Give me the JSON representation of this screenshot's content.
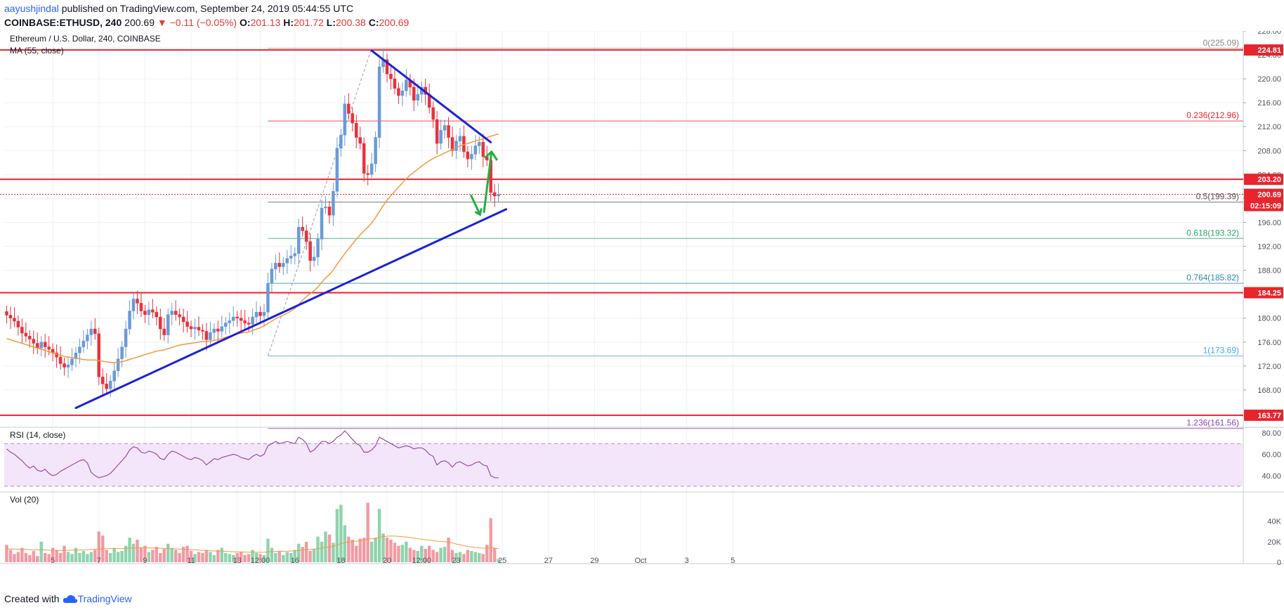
{
  "header": {
    "author": "aayushjindal",
    "published": "published on TradingView.com, September 24, 2019 05:44:55 UTC",
    "symbol": "COINBASE:ETHUSD, 240",
    "last": "200.69",
    "change": "−0.11 (−0.05%)",
    "open_label": "O:",
    "open": "201.13",
    "high_label": "H:",
    "high": "201.72",
    "low_label": "L:",
    "low": "200.38",
    "close_label": "C:",
    "close": "200.69"
  },
  "footer": {
    "created_with": "Created with",
    "brand": "TradingView"
  },
  "colors": {
    "up": "#6a9ad8",
    "down": "#e8323c",
    "ma": "#f59a3c",
    "trend": "#1c22d6",
    "arrow": "#21b040",
    "level": "#e8242c",
    "rsi_line": "#9c4aa8",
    "vol_up": "#8fd3ac",
    "vol_down": "#f39aa4"
  },
  "chart_data": [
    {
      "type": "candlestick",
      "title": "Ethereum / U.S. Dollar, 240, COINBASE",
      "indicator_label": "MA (55, close)",
      "ylim": [
        162,
        228
      ],
      "y_ticks": [
        168,
        172,
        176,
        180,
        184,
        188,
        192,
        196,
        200,
        204,
        208,
        212,
        216,
        220,
        224,
        228
      ],
      "x_ticks": [
        {
          "label": "5",
          "i": 12
        },
        {
          "label": "7",
          "i": 24
        },
        {
          "label": "9",
          "i": 36
        },
        {
          "label": "11",
          "i": 48
        },
        {
          "label": "13",
          "i": 60
        },
        {
          "label": "12:00",
          "i": 66
        },
        {
          "label": "16",
          "i": 75
        },
        {
          "label": "18",
          "i": 87
        },
        {
          "label": "20",
          "i": 99
        },
        {
          "label": "12:00",
          "i": 108
        },
        {
          "label": "23",
          "i": 117
        },
        {
          "label": "25",
          "i": 129
        },
        {
          "label": "27",
          "i": 141
        },
        {
          "label": "29",
          "i": 153
        },
        {
          "label": "Oct",
          "i": 165
        },
        {
          "label": "3",
          "i": 177
        },
        {
          "label": "5",
          "i": 189
        }
      ],
      "close": [
        180.5,
        180.0,
        179.5,
        178.5,
        177.5,
        177.0,
        176.5,
        175.8,
        175.0,
        176.0,
        175.2,
        174.8,
        174.2,
        173.5,
        172.4,
        171.8,
        172.2,
        173.2,
        174.2,
        175.2,
        176.2,
        177.2,
        178.2,
        177.4,
        170.2,
        169.0,
        168.2,
        169.5,
        171.2,
        173.2,
        175.2,
        178.2,
        181.2,
        183.2,
        182.5,
        181.2,
        180.6,
        181.4,
        181.0,
        180.2,
        178.2,
        177.2,
        180.6,
        181.2,
        180.6,
        180.2,
        179.4,
        178.6,
        178.2,
        178.5,
        178.0,
        177.8,
        176.4,
        177.6,
        178.2,
        177.8,
        178.6,
        179.2,
        179.6,
        180.2,
        180.0,
        179.6,
        179.2,
        179.0,
        180.2,
        181.0,
        180.4,
        181.0,
        185.8,
        188.2,
        189.2,
        188.6,
        189.2,
        190.0,
        190.4,
        190.8,
        195.2,
        194.6,
        192.8,
        189.6,
        190.2,
        193.2,
        198.4,
        198.6,
        197.2,
        201.2,
        208.4,
        210.6,
        215.8,
        214.2,
        212.6,
        210.2,
        209.2,
        204.2,
        204.0,
        205.8,
        210.2,
        222.0,
        223.2,
        220.8,
        220.0,
        218.4,
        217.2,
        218.0,
        219.8,
        218.6,
        216.4,
        217.4,
        218.6,
        217.4,
        215.2,
        213.2,
        209.2,
        211.4,
        212.2,
        210.2,
        208.0,
        209.6,
        210.4,
        207.8,
        206.6,
        207.4,
        208.8,
        209.4,
        207.0,
        206.4,
        201.0,
        200.4,
        200.7
      ],
      "ma55_start_index": 0,
      "ma55": [
        176.6,
        176.4,
        176.2,
        176.0,
        175.8,
        175.6,
        175.4,
        175.2,
        175.0,
        174.8,
        174.6,
        174.4,
        174.2,
        174.0,
        173.8,
        173.6,
        173.5,
        173.4,
        173.3,
        173.2,
        173.1,
        173.0,
        173.0,
        173.0,
        172.9,
        172.8,
        172.7,
        172.6,
        172.6,
        172.6,
        172.7,
        172.9,
        173.1,
        173.3,
        173.5,
        173.7,
        173.9,
        174.1,
        174.3,
        174.5,
        174.6,
        174.7,
        174.9,
        175.1,
        175.3,
        175.5,
        175.6,
        175.7,
        175.8,
        175.9,
        176.0,
        176.1,
        176.1,
        176.2,
        176.3,
        176.4,
        176.6,
        176.8,
        177.0,
        177.2,
        177.4,
        177.5,
        177.6,
        177.7,
        177.9,
        178.2,
        178.4,
        178.7,
        179.1,
        179.5,
        179.9,
        180.2,
        180.5,
        180.8,
        181.2,
        181.6,
        182.3,
        183.0,
        183.6,
        184.1,
        184.6,
        185.2,
        186.0,
        186.7,
        187.3,
        188.0,
        189.0,
        189.9,
        190.8,
        191.6,
        192.4,
        193.2,
        193.9,
        194.6,
        195.2,
        195.9,
        196.8,
        197.8,
        198.8,
        199.7,
        200.5,
        201.2,
        201.9,
        202.6,
        203.3,
        203.9,
        204.4,
        204.9,
        205.4,
        205.9,
        206.3,
        206.7,
        207.0,
        207.3,
        207.6,
        207.9,
        208.2,
        208.5,
        208.8,
        209.0,
        209.2,
        209.4,
        209.6,
        209.8,
        210.0,
        210.2,
        210.4,
        210.6,
        210.8
      ],
      "horizontal_levels": [
        224.81,
        203.2,
        184.25,
        163.77
      ],
      "price_badges": [
        "224.81",
        "203.20",
        "200.69",
        "02:15:09",
        "184.25",
        "163.77"
      ],
      "fib_levels": [
        {
          "label": "0(225.09)",
          "value": 225.09,
          "color": "#888888"
        },
        {
          "label": "0.236(212.96)",
          "value": 212.96,
          "color": "#e8242c"
        },
        {
          "label": "0.5(199.39)",
          "value": 199.39,
          "color": "#555555"
        },
        {
          "label": "0.618(193.32)",
          "value": 193.32,
          "color": "#24a86a"
        },
        {
          "label": "0.764(185.82)",
          "value": 185.82,
          "color": "#2a8ab4"
        },
        {
          "label": "1(173.69)",
          "value": 173.69,
          "color": "#42a5f5"
        },
        {
          "label": "1.236(161.56)",
          "value": 161.56,
          "color": "#8e44ad"
        }
      ],
      "trendlines": [
        {
          "from": [
            18,
            165.0
          ],
          "to": [
            130,
            198.2
          ]
        },
        {
          "from": [
            95,
            224.7
          ],
          "to": [
            126,
            209.4
          ]
        }
      ]
    },
    {
      "type": "line",
      "title": "RSI (14, close)",
      "ylim": [
        26,
        84
      ],
      "y_ticks": [
        40,
        60,
        80
      ],
      "band": [
        30,
        70
      ],
      "values": [
        65,
        62,
        60,
        57,
        54,
        50,
        47,
        49,
        45,
        44,
        46,
        42,
        40,
        41,
        44,
        46,
        48,
        50,
        52,
        54,
        55,
        52,
        43,
        40,
        38,
        39,
        40,
        42,
        46,
        50,
        54,
        58,
        64,
        67,
        66,
        62,
        61,
        63,
        62,
        60,
        56,
        55,
        60,
        63,
        62,
        60,
        58,
        56,
        55,
        57,
        56,
        54,
        50,
        53,
        56,
        55,
        57,
        58,
        59,
        60,
        59,
        57,
        56,
        55,
        58,
        60,
        58,
        60,
        68,
        70,
        72,
        70,
        71,
        72,
        71,
        70,
        76,
        74,
        70,
        62,
        64,
        68,
        72,
        72,
        70,
        72,
        76,
        78,
        82,
        78,
        74,
        70,
        68,
        62,
        62,
        64,
        68,
        76,
        74,
        72,
        70,
        68,
        66,
        67,
        68,
        67,
        65,
        66,
        66,
        64,
        60,
        58,
        50,
        53,
        54,
        52,
        48,
        52,
        53,
        51,
        49,
        50,
        52,
        53,
        50,
        49,
        40,
        38,
        38
      ]
    },
    {
      "type": "bar",
      "title": "Vol (20)",
      "ylim": [
        0,
        59000
      ],
      "y_ticks": [
        {
          "v": 0,
          "label": "0"
        },
        {
          "v": 20000,
          "label": "20K"
        },
        {
          "v": 40000,
          "label": "40K"
        }
      ],
      "values": [
        17000,
        12000,
        8000,
        10000,
        14000,
        9000,
        7000,
        11000,
        6000,
        20000,
        9000,
        8000,
        14000,
        12000,
        9000,
        16000,
        10000,
        8000,
        14000,
        9000,
        11000,
        8000,
        10000,
        12000,
        30000,
        26000,
        12000,
        9000,
        14000,
        10000,
        11000,
        16000,
        24000,
        18000,
        22000,
        14000,
        16000,
        10000,
        12000,
        15000,
        9000,
        13000,
        18000,
        14000,
        12000,
        9000,
        15000,
        16000,
        11000,
        8000,
        10000,
        9000,
        12000,
        10000,
        7000,
        12000,
        14000,
        9000,
        8000,
        7000,
        9000,
        10000,
        7000,
        8000,
        12000,
        9000,
        8000,
        7000,
        23000,
        14000,
        9000,
        11000,
        7000,
        10000,
        9000,
        12000,
        18000,
        15000,
        20000,
        11000,
        13000,
        25000,
        20000,
        30000,
        27000,
        19000,
        52000,
        56000,
        36000,
        25000,
        22000,
        16000,
        23000,
        24000,
        58000,
        20000,
        24000,
        52000,
        28000,
        24000,
        22000,
        19000,
        16000,
        17000,
        20000,
        14000,
        12000,
        11000,
        16000,
        13000,
        16000,
        12000,
        10000,
        14000,
        15000,
        24000,
        12000,
        9000,
        10000,
        8000,
        12000,
        11000,
        10000,
        9000,
        8000,
        17000,
        43000,
        14000,
        3000
      ],
      "ma_values": [
        13000,
        13000,
        12800,
        12700,
        12600,
        12400,
        12200,
        12100,
        12000,
        12100,
        12000,
        11800,
        11700,
        11600,
        11500,
        11500,
        11600,
        11700,
        11800,
        11900,
        12000,
        12200,
        12400,
        12600,
        12900,
        13100,
        13200,
        13300,
        13300,
        13300,
        13300,
        13500,
        13700,
        13900,
        14000,
        14100,
        14100,
        14000,
        13900,
        13800,
        13600,
        13500,
        13300,
        13200,
        13000,
        12800,
        12600,
        12400,
        12200,
        12000,
        11800,
        11600,
        11400,
        11200,
        11000,
        10900,
        10800,
        10600,
        10400,
        10200,
        10100,
        10000,
        9900,
        9800,
        9800,
        9700,
        9700,
        9800,
        10100,
        10300,
        10400,
        10600,
        10700,
        10800,
        11000,
        11200,
        11500,
        11800,
        12200,
        12500,
        12800,
        13300,
        13800,
        14400,
        15000,
        15600,
        16900,
        18300,
        19200,
        19700,
        20200,
        20500,
        20900,
        21300,
        22700,
        22900,
        23200,
        24400,
        25000,
        25400,
        25600,
        25500,
        25200,
        24900,
        24600,
        24200,
        23500,
        22800,
        22400,
        21900,
        21600,
        21100,
        20600,
        20400,
        20100,
        19600,
        18800,
        17800,
        17000,
        16200,
        15400,
        14800,
        14400,
        14000,
        13700,
        13500,
        14100,
        13800,
        13200
      ]
    }
  ]
}
